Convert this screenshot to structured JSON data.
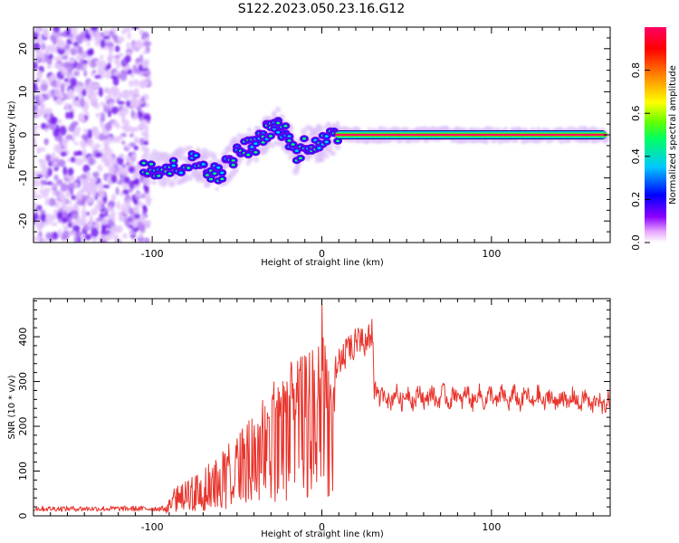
{
  "title": "S122.2023.050.23.16.G12",
  "chart_data": [
    {
      "type": "heatmap",
      "xlabel": "Height of straight line (km)",
      "ylabel": "Frequency (Hz)",
      "xlim": [
        -170,
        170
      ],
      "ylim": [
        -25,
        25
      ],
      "xticks": [
        -100,
        0,
        100
      ],
      "yticks": [
        -20,
        -10,
        0,
        10,
        20
      ],
      "description_ridge": [
        {
          "x": -105,
          "y": -7
        },
        {
          "x": -98,
          "y": -8
        },
        {
          "x": -90,
          "y": -8
        },
        {
          "x": -82,
          "y": -7
        },
        {
          "x": -75,
          "y": -6
        },
        {
          "x": -68,
          "y": -8
        },
        {
          "x": -60,
          "y": -9
        },
        {
          "x": -52,
          "y": -5
        },
        {
          "x": -45,
          "y": -3
        },
        {
          "x": -38,
          "y": -2
        },
        {
          "x": -32,
          "y": 1
        },
        {
          "x": -26,
          "y": 2
        },
        {
          "x": -20,
          "y": 0
        },
        {
          "x": -15,
          "y": -5
        },
        {
          "x": -10,
          "y": -2
        },
        {
          "x": -5,
          "y": -2
        },
        {
          "x": 0,
          "y": -2
        },
        {
          "x": 5,
          "y": -1
        },
        {
          "x": 10,
          "y": 0
        },
        {
          "x": 20,
          "y": 0
        },
        {
          "x": 50,
          "y": 0
        },
        {
          "x": 100,
          "y": 0
        },
        {
          "x": 168,
          "y": 0
        }
      ],
      "colorbar": {
        "label": "Normalized spectral amplitude",
        "range": [
          0,
          1
        ],
        "ticks": [
          "0.0",
          "0.2",
          "0.4",
          "0.6",
          "0.8"
        ],
        "colors": [
          "#ffffff",
          "#e8a8ff",
          "#8a00ff",
          "#0000ff",
          "#00c8ff",
          "#00ff64",
          "#64ff00",
          "#ffff00",
          "#ff8000",
          "#ff0000",
          "#ff0064"
        ]
      }
    },
    {
      "type": "line",
      "xlabel": "Height of straight line (km)",
      "ylabel": "SNR (10 * v/v)",
      "xlim": [
        -170,
        170
      ],
      "ylim": [
        0,
        485
      ],
      "xticks": [
        -100,
        0,
        100
      ],
      "yticks": [
        0,
        100,
        200,
        300,
        400
      ],
      "color": "#e8352d",
      "envelope": [
        {
          "x": -170,
          "y": 15
        },
        {
          "x": -100,
          "y": 15
        },
        {
          "x": -92,
          "y": 20
        },
        {
          "x": -88,
          "y": 60
        },
        {
          "x": -80,
          "y": 80
        },
        {
          "x": -70,
          "y": 100
        },
        {
          "x": -60,
          "y": 150
        },
        {
          "x": -50,
          "y": 180
        },
        {
          "x": -40,
          "y": 230
        },
        {
          "x": -30,
          "y": 300
        },
        {
          "x": -20,
          "y": 340
        },
        {
          "x": -10,
          "y": 360
        },
        {
          "x": -2,
          "y": 390
        },
        {
          "x": 0,
          "y": 485
        },
        {
          "x": 5,
          "y": 320
        },
        {
          "x": 10,
          "y": 380
        },
        {
          "x": 20,
          "y": 420
        },
        {
          "x": 30,
          "y": 440
        },
        {
          "x": 31,
          "y": 300
        },
        {
          "x": 35,
          "y": 275
        },
        {
          "x": 50,
          "y": 275
        },
        {
          "x": 80,
          "y": 275
        },
        {
          "x": 120,
          "y": 272
        },
        {
          "x": 150,
          "y": 268
        },
        {
          "x": 170,
          "y": 260
        }
      ]
    }
  ]
}
